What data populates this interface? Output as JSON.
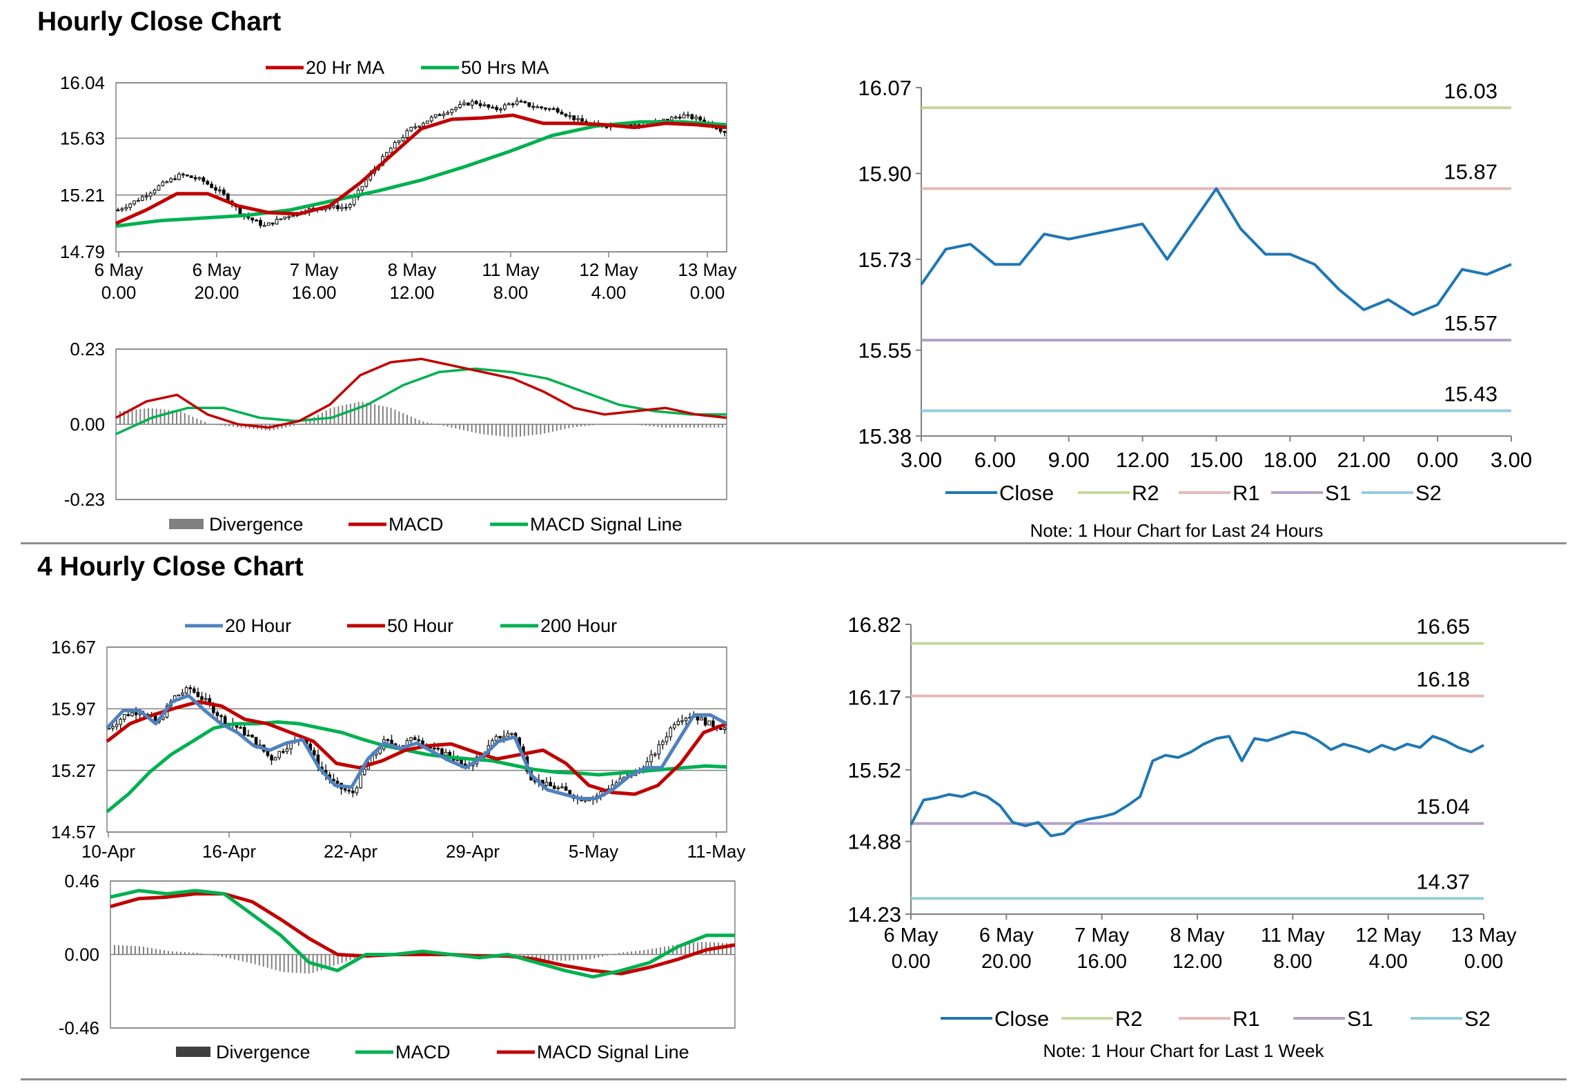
{
  "sections": {
    "hourly_title": "Hourly Close Chart",
    "four_hourly_title": "4 Hourly Close Chart"
  },
  "colors": {
    "red": "#c00000",
    "green": "#00b050",
    "blue": "#4f81bd",
    "close": "#1f77b4",
    "r2": "#c4d79b",
    "r1": "#e6b9b8",
    "s1": "#b3a2c7",
    "s2": "#93cddd",
    "grid": "#808080",
    "divergence": "#808080"
  },
  "chart_data": [
    {
      "id": "hourly_candles",
      "type": "candlestick",
      "title": "Hourly Close Chart",
      "ylim": [
        14.79,
        16.04
      ],
      "yticks": [
        "16.04",
        "15.63",
        "15.21",
        "14.79"
      ],
      "xticks": [
        [
          "6 May",
          "0.00"
        ],
        [
          "6 May",
          "20.00"
        ],
        [
          "7 May",
          "16.00"
        ],
        [
          "8 May",
          "12.00"
        ],
        [
          "11 May",
          "8.00"
        ],
        [
          "12 May",
          "4.00"
        ],
        [
          "13 May",
          "0.00"
        ]
      ],
      "legend": [
        "20 Hr MA",
        "50 Hrs MA"
      ],
      "close_path": [
        15.1,
        15.18,
        15.28,
        15.36,
        15.32,
        15.22,
        15.06,
        14.98,
        15.05,
        15.1,
        15.12,
        15.12,
        15.35,
        15.55,
        15.7,
        15.78,
        15.85,
        15.9,
        15.84,
        15.9,
        15.86,
        15.84,
        15.76,
        15.72,
        15.74,
        15.72,
        15.76,
        15.8,
        15.76,
        15.68
      ],
      "series": [
        {
          "name": "20 Hr MA",
          "color": "#c00000",
          "values": [
            15.0,
            15.1,
            15.22,
            15.22,
            15.13,
            15.08,
            15.07,
            15.13,
            15.3,
            15.5,
            15.7,
            15.77,
            15.78,
            15.8,
            15.74,
            15.74,
            15.73,
            15.71,
            15.74,
            15.73,
            15.71
          ]
        },
        {
          "name": "50 Hrs MA",
          "color": "#00b050",
          "values": [
            14.98,
            15.02,
            15.04,
            15.06,
            15.1,
            15.17,
            15.24,
            15.32,
            15.42,
            15.53,
            15.65,
            15.72,
            15.75,
            15.75,
            15.73
          ]
        }
      ]
    },
    {
      "id": "hourly_macd",
      "type": "line",
      "ylim": [
        -0.23,
        0.23
      ],
      "yticks": [
        "0.23",
        "0.00",
        "-0.23"
      ],
      "legend": [
        "Divergence",
        "MACD",
        "MACD Signal Line"
      ],
      "series": [
        {
          "name": "MACD",
          "color": "#c00000",
          "values": [
            0.02,
            0.07,
            0.09,
            0.03,
            0.0,
            -0.01,
            0.01,
            0.06,
            0.15,
            0.19,
            0.2,
            0.18,
            0.16,
            0.14,
            0.1,
            0.05,
            0.03,
            0.04,
            0.05,
            0.03,
            0.02
          ]
        },
        {
          "name": "MACD Signal Line",
          "color": "#00b050",
          "values": [
            -0.03,
            0.02,
            0.05,
            0.05,
            0.02,
            0.01,
            0.02,
            0.06,
            0.12,
            0.16,
            0.17,
            0.16,
            0.14,
            0.1,
            0.06,
            0.04,
            0.03,
            0.03
          ]
        },
        {
          "name": "Divergence",
          "color": "#808080",
          "values": [
            0.04,
            0.05,
            0.04,
            0.0,
            -0.01,
            -0.02,
            0.0,
            0.05,
            0.07,
            0.05,
            0.01,
            -0.01,
            -0.03,
            -0.04,
            -0.03,
            -0.01,
            0.0,
            0.0,
            -0.01,
            -0.01,
            -0.01
          ]
        }
      ]
    },
    {
      "id": "hourly_close_24h",
      "type": "line",
      "ylim": [
        15.38,
        16.07
      ],
      "yticks": [
        "16.07",
        "15.90",
        "15.73",
        "15.55",
        "15.38"
      ],
      "xticks": [
        "3.00",
        "6.00",
        "9.00",
        "12.00",
        "15.00",
        "18.00",
        "21.00",
        "0.00",
        "3.00"
      ],
      "legend": [
        "Close",
        "R2",
        "R1",
        "S1",
        "S2"
      ],
      "note": "Note: 1 Hour Chart for Last 24 Hours",
      "levels": [
        {
          "name": "R2",
          "value": 16.03,
          "label": "16.03",
          "color": "#c4d79b"
        },
        {
          "name": "R1",
          "value": 15.87,
          "label": "15.87",
          "color": "#e6b9b8"
        },
        {
          "name": "S1",
          "value": 15.57,
          "label": "15.57",
          "color": "#b3a2c7"
        },
        {
          "name": "S2",
          "value": 15.43,
          "label": "15.43",
          "color": "#93cddd"
        }
      ],
      "series": [
        {
          "name": "Close",
          "color": "#1f77b4",
          "values": [
            15.68,
            15.75,
            15.76,
            15.72,
            15.72,
            15.78,
            15.77,
            15.78,
            15.79,
            15.8,
            15.73,
            15.8,
            15.87,
            15.79,
            15.74,
            15.74,
            15.72,
            15.67,
            15.63,
            15.65,
            15.62,
            15.64,
            15.71,
            15.7,
            15.72
          ]
        }
      ]
    },
    {
      "id": "four_hourly_candles",
      "type": "candlestick",
      "title": "4 Hourly Close Chart",
      "ylim": [
        14.57,
        16.67
      ],
      "yticks": [
        "16.67",
        "15.97",
        "15.27",
        "14.57"
      ],
      "xticks": [
        "10-Apr",
        "16-Apr",
        "22-Apr",
        "29-Apr",
        "5-May",
        "11-May"
      ],
      "legend": [
        "20 Hour",
        "50 Hour",
        "200 Hour"
      ],
      "close_path": [
        15.75,
        15.9,
        15.95,
        15.8,
        16.1,
        16.2,
        16.05,
        15.85,
        15.75,
        15.6,
        15.4,
        15.55,
        15.65,
        15.3,
        15.1,
        15.0,
        15.35,
        15.6,
        15.55,
        15.65,
        15.5,
        15.45,
        15.3,
        15.45,
        15.65,
        15.7,
        15.2,
        15.1,
        15.05,
        14.95,
        14.97,
        15.1,
        15.2,
        15.3,
        15.55,
        15.85,
        15.9,
        15.8,
        15.75
      ],
      "series": [
        {
          "name": "20 Hour",
          "color": "#4f81bd",
          "values": [
            15.75,
            15.95,
            15.95,
            15.8,
            16.05,
            16.12,
            15.95,
            15.8,
            15.7,
            15.55,
            15.5,
            15.58,
            15.62,
            15.3,
            15.1,
            15.08,
            15.4,
            15.58,
            15.52,
            15.58,
            15.48,
            15.38,
            15.3,
            15.42,
            15.6,
            15.65,
            15.22,
            15.05,
            15.0,
            14.95,
            14.95,
            15.05,
            15.2,
            15.3,
            15.3,
            15.6,
            15.9,
            15.9,
            15.8
          ]
        },
        {
          "name": "50 Hour",
          "color": "#c00000",
          "values": [
            15.6,
            15.8,
            15.9,
            15.98,
            16.05,
            16.0,
            15.85,
            15.8,
            15.7,
            15.6,
            15.35,
            15.3,
            15.38,
            15.5,
            15.55,
            15.57,
            15.48,
            15.4,
            15.45,
            15.5,
            15.35,
            15.1,
            15.02,
            15.0,
            15.1,
            15.35,
            15.7,
            15.8
          ]
        },
        {
          "name": "200 Hour",
          "color": "#00b050",
          "values": [
            14.8,
            15.0,
            15.25,
            15.45,
            15.6,
            15.75,
            15.8,
            15.8,
            15.82,
            15.8,
            15.75,
            15.7,
            15.62,
            15.55,
            15.5,
            15.45,
            15.42,
            15.4,
            15.38,
            15.33,
            15.28,
            15.25,
            15.24,
            15.22,
            15.24,
            15.26,
            15.28,
            15.3,
            15.32,
            15.31
          ]
        }
      ]
    },
    {
      "id": "four_hourly_macd",
      "type": "line",
      "ylim": [
        -0.46,
        0.46
      ],
      "yticks": [
        "0.46",
        "0.00",
        "-0.46"
      ],
      "legend": [
        "Divergence",
        "MACD",
        "MACD Signal Line"
      ],
      "series": [
        {
          "name": "MACD",
          "color": "#00b050",
          "values": [
            0.36,
            0.4,
            0.38,
            0.4,
            0.38,
            0.25,
            0.12,
            -0.05,
            -0.1,
            0.0,
            0.0,
            0.02,
            0.0,
            -0.02,
            0.0,
            -0.05,
            -0.1,
            -0.14,
            -0.1,
            -0.05,
            0.05,
            0.12,
            0.12
          ]
        },
        {
          "name": "MACD Signal Line",
          "color": "#c00000",
          "values": [
            0.3,
            0.35,
            0.36,
            0.38,
            0.38,
            0.33,
            0.22,
            0.1,
            0.0,
            -0.01,
            0.0,
            0.0,
            0.0,
            -0.01,
            -0.01,
            -0.03,
            -0.07,
            -0.1,
            -0.12,
            -0.08,
            -0.03,
            0.03,
            0.06
          ]
        },
        {
          "name": "Divergence",
          "color": "#808080",
          "values": [
            0.06,
            0.05,
            0.02,
            0.01,
            -0.02,
            -0.06,
            -0.11,
            -0.12,
            -0.06,
            0.0,
            0.01,
            0.02,
            0.0,
            -0.02,
            -0.02,
            -0.03,
            -0.04,
            -0.03,
            0.01,
            0.03,
            0.06,
            0.08,
            0.07
          ]
        }
      ]
    },
    {
      "id": "hourly_close_week",
      "type": "line",
      "ylim": [
        14.23,
        16.82
      ],
      "yticks": [
        "16.82",
        "16.17",
        "15.52",
        "14.88",
        "14.23"
      ],
      "xticks": [
        [
          "6 May",
          "0.00"
        ],
        [
          "6 May",
          "20.00"
        ],
        [
          "7 May",
          "16.00"
        ],
        [
          "8 May",
          "12.00"
        ],
        [
          "11 May",
          "8.00"
        ],
        [
          "12 May",
          "4.00"
        ],
        [
          "13 May",
          "0.00"
        ]
      ],
      "legend": [
        "Close",
        "R2",
        "R1",
        "S1",
        "S2"
      ],
      "note": "Note: 1 Hour Chart for Last 1 Week",
      "levels": [
        {
          "name": "R2",
          "value": 16.65,
          "label": "16.65",
          "color": "#c4d79b"
        },
        {
          "name": "R1",
          "value": 16.18,
          "label": "16.18",
          "color": "#e6b9b8"
        },
        {
          "name": "S1",
          "value": 15.04,
          "label": "15.04",
          "color": "#b3a2c7"
        },
        {
          "name": "S2",
          "value": 14.37,
          "label": "14.37",
          "color": "#93cddd"
        }
      ],
      "series": [
        {
          "name": "Close",
          "color": "#1f77b4",
          "values": [
            15.03,
            15.25,
            15.27,
            15.3,
            15.28,
            15.32,
            15.28,
            15.2,
            15.05,
            15.02,
            15.05,
            14.93,
            14.95,
            15.05,
            15.08,
            15.1,
            15.13,
            15.2,
            15.28,
            15.6,
            15.65,
            15.63,
            15.68,
            15.75,
            15.8,
            15.82,
            15.6,
            15.8,
            15.78,
            15.82,
            15.86,
            15.84,
            15.78,
            15.7,
            15.75,
            15.72,
            15.68,
            15.74,
            15.7,
            15.75,
            15.72,
            15.82,
            15.78,
            15.72,
            15.68,
            15.74
          ]
        }
      ]
    }
  ]
}
